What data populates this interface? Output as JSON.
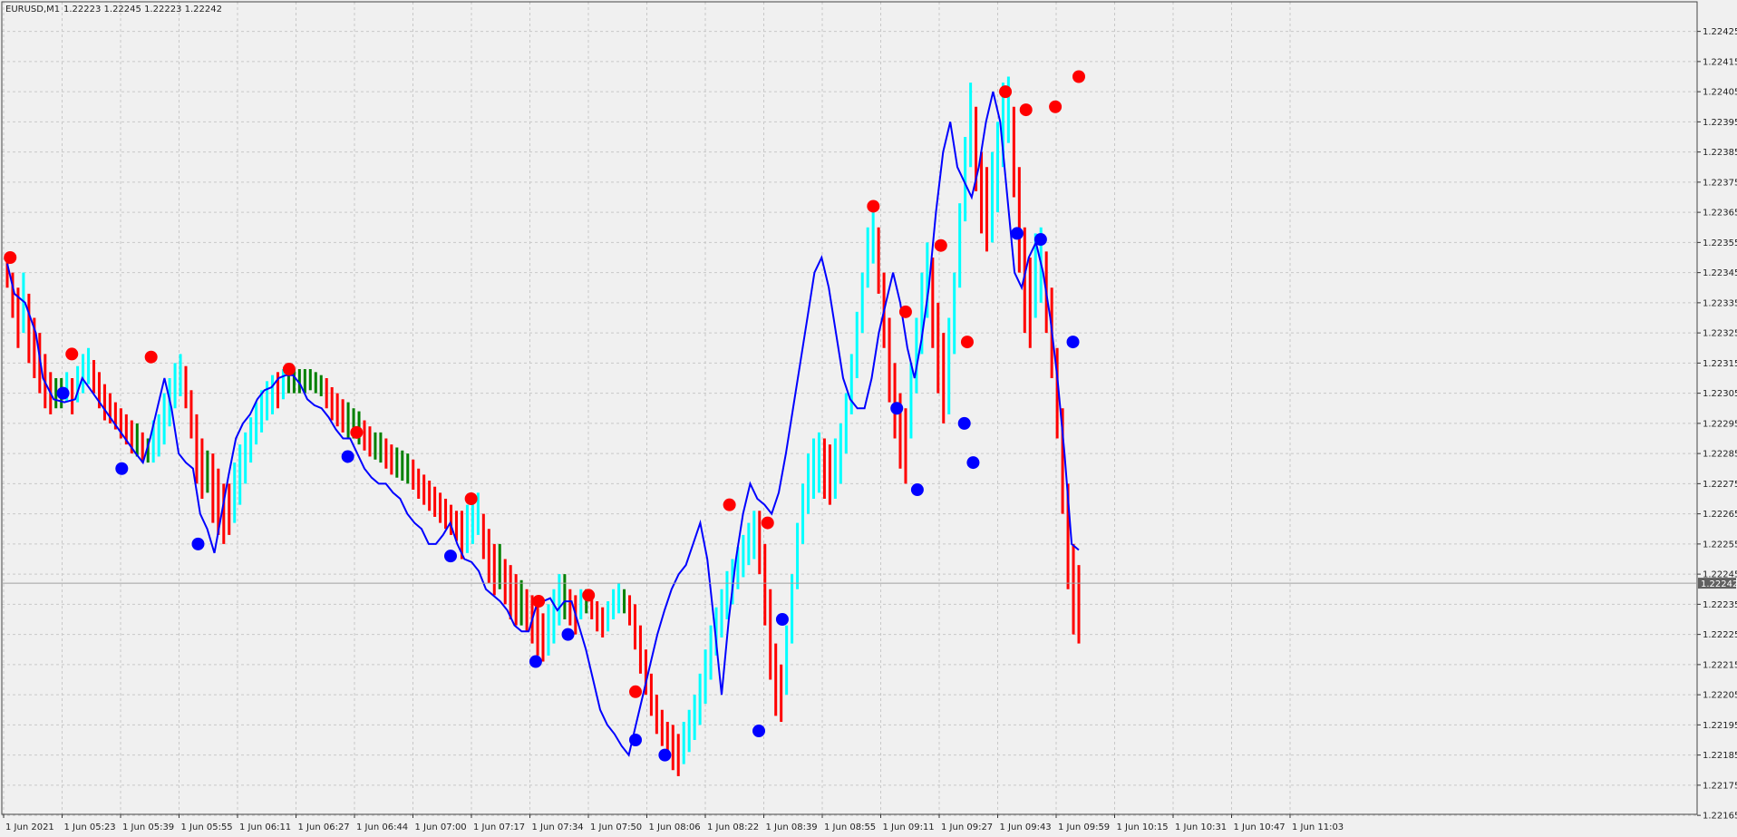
{
  "header": {
    "symbol_timeframe": "EURUSD,M1",
    "ohlc": "1.22223 1.22245 1.22223 1.22242"
  },
  "chart_data": {
    "type": "bar",
    "grid": true,
    "ylim": [
      1.2216,
      1.2243
    ],
    "price_ticks": [
      "1.22425",
      "1.22415",
      "1.22405",
      "1.22395",
      "1.22385",
      "1.22375",
      "1.22365",
      "1.22355",
      "1.22345",
      "1.22335",
      "1.22325",
      "1.22315",
      "1.22305",
      "1.22295",
      "1.22285",
      "1.22275",
      "1.22265",
      "1.22255",
      "1.22245",
      "1.22235",
      "1.22225",
      "1.22215",
      "1.22205",
      "1.22195",
      "1.22185",
      "1.22175",
      "1.22165"
    ],
    "time_labels": [
      "1 Jun 2021",
      "1 Jun 05:23",
      "1 Jun 05:39",
      "1 Jun 05:55",
      "1 Jun 06:11",
      "1 Jun 06:27",
      "1 Jun 06:44",
      "1 Jun 07:00",
      "1 Jun 07:17",
      "1 Jun 07:34",
      "1 Jun 07:50",
      "1 Jun 08:06",
      "1 Jun 08:22",
      "1 Jun 08:39",
      "1 Jun 08:55",
      "1 Jun 09:11",
      "1 Jun 09:27",
      "1 Jun 09:43",
      "1 Jun 09:59",
      "1 Jun 10:15",
      "1 Jun 10:31",
      "1 Jun 10:47",
      "1 Jun 11:03"
    ],
    "current_price": "1.22242",
    "price_line": 1.22242,
    "colors": {
      "background": "#f0f0f0",
      "grid": "#c8c8c8",
      "bar_up": "#00ffff",
      "bar_down": "#ff0000",
      "bar_neutral": "#008000",
      "band_line": "#0000ff",
      "marker_high": "#ff0000",
      "marker_low": "#0000ff",
      "price_label_bg": "#606060"
    },
    "band_line": [
      [
        0,
        1.22348
      ],
      [
        2,
        1.22338
      ],
      [
        5,
        1.22335
      ],
      [
        8,
        1.22325
      ],
      [
        10,
        1.2231
      ],
      [
        13,
        1.22303
      ],
      [
        16,
        1.22302
      ],
      [
        19,
        1.22303
      ],
      [
        21,
        1.2231
      ],
      [
        24,
        1.22305
      ],
      [
        27,
        1.223
      ],
      [
        30,
        1.22295
      ],
      [
        33,
        1.2229
      ],
      [
        36,
        1.22285
      ],
      [
        38,
        1.22282
      ],
      [
        40,
        1.2229
      ],
      [
        42,
        1.223
      ],
      [
        44,
        1.2231
      ],
      [
        46,
        1.223
      ],
      [
        48,
        1.22285
      ],
      [
        50,
        1.22282
      ],
      [
        52,
        1.2228
      ],
      [
        54,
        1.22265
      ],
      [
        56,
        1.2226
      ],
      [
        58,
        1.22252
      ],
      [
        60,
        1.22265
      ],
      [
        62,
        1.22278
      ],
      [
        64,
        1.2229
      ],
      [
        66,
        1.22295
      ],
      [
        68,
        1.22298
      ],
      [
        70,
        1.22303
      ],
      [
        72,
        1.22306
      ],
      [
        74,
        1.22307
      ],
      [
        76,
        1.2231
      ],
      [
        78,
        1.22311
      ],
      [
        80,
        1.22311
      ],
      [
        82,
        1.22308
      ],
      [
        84,
        1.22303
      ],
      [
        86,
        1.22301
      ],
      [
        88,
        1.223
      ],
      [
        90,
        1.22297
      ],
      [
        92,
        1.22293
      ],
      [
        94,
        1.2229
      ],
      [
        96,
        1.2229
      ],
      [
        98,
        1.22285
      ],
      [
        100,
        1.2228
      ],
      [
        102,
        1.22277
      ],
      [
        104,
        1.22275
      ],
      [
        106,
        1.22275
      ],
      [
        108,
        1.22272
      ],
      [
        110,
        1.2227
      ],
      [
        112,
        1.22265
      ],
      [
        114,
        1.22262
      ],
      [
        116,
        1.2226
      ],
      [
        118,
        1.22255
      ],
      [
        120,
        1.22255
      ],
      [
        122,
        1.22258
      ],
      [
        124,
        1.22262
      ],
      [
        126,
        1.22255
      ],
      [
        128,
        1.2225
      ],
      [
        130,
        1.22249
      ],
      [
        132,
        1.22246
      ],
      [
        134,
        1.2224
      ],
      [
        136,
        1.22238
      ],
      [
        138,
        1.22236
      ],
      [
        140,
        1.22233
      ],
      [
        142,
        1.22228
      ],
      [
        144,
        1.22226
      ],
      [
        146,
        1.22226
      ],
      [
        148,
        1.22234
      ],
      [
        150,
        1.22236
      ],
      [
        152,
        1.22237
      ],
      [
        154,
        1.22233
      ],
      [
        156,
        1.22236
      ],
      [
        158,
        1.22236
      ],
      [
        160,
        1.22228
      ],
      [
        162,
        1.2222
      ],
      [
        164,
        1.2221
      ],
      [
        166,
        1.222
      ],
      [
        168,
        1.22195
      ],
      [
        170,
        1.22192
      ],
      [
        172,
        1.22188
      ],
      [
        174,
        1.22185
      ],
      [
        176,
        1.22195
      ],
      [
        178,
        1.22205
      ],
      [
        180,
        1.22215
      ],
      [
        182,
        1.22225
      ],
      [
        184,
        1.22233
      ],
      [
        186,
        1.2224
      ],
      [
        188,
        1.22245
      ],
      [
        190,
        1.22248
      ],
      [
        192,
        1.22255
      ],
      [
        194,
        1.22262
      ],
      [
        196,
        1.2225
      ],
      [
        198,
        1.22228
      ],
      [
        200,
        1.22205
      ],
      [
        202,
        1.2223
      ],
      [
        204,
        1.2225
      ],
      [
        206,
        1.22265
      ],
      [
        208,
        1.22275
      ],
      [
        210,
        1.2227
      ],
      [
        212,
        1.22268
      ],
      [
        214,
        1.22265
      ],
      [
        216,
        1.22272
      ],
      [
        218,
        1.22285
      ],
      [
        220,
        1.223
      ],
      [
        222,
        1.22315
      ],
      [
        224,
        1.2233
      ],
      [
        226,
        1.22345
      ],
      [
        228,
        1.2235
      ],
      [
        230,
        1.2234
      ],
      [
        232,
        1.22325
      ],
      [
        234,
        1.2231
      ],
      [
        236,
        1.22303
      ],
      [
        238,
        1.223
      ],
      [
        240,
        1.223
      ],
      [
        242,
        1.2231
      ],
      [
        244,
        1.22325
      ],
      [
        246,
        1.22335
      ],
      [
        248,
        1.22345
      ],
      [
        250,
        1.22335
      ],
      [
        252,
        1.2232
      ],
      [
        254,
        1.2231
      ],
      [
        256,
        1.22323
      ],
      [
        258,
        1.2234
      ],
      [
        260,
        1.22365
      ],
      [
        262,
        1.22385
      ],
      [
        264,
        1.22395
      ],
      [
        266,
        1.2238
      ],
      [
        268,
        1.22375
      ],
      [
        270,
        1.2237
      ],
      [
        272,
        1.2238
      ],
      [
        274,
        1.22395
      ],
      [
        276,
        1.22405
      ],
      [
        278,
        1.22395
      ],
      [
        280,
        1.2237
      ],
      [
        282,
        1.22345
      ],
      [
        284,
        1.2234
      ],
      [
        286,
        1.2235
      ],
      [
        288,
        1.22355
      ],
      [
        290,
        1.22345
      ],
      [
        292,
        1.2233
      ],
      [
        294,
        1.2231
      ],
      [
        296,
        1.22285
      ],
      [
        298,
        1.22255
      ],
      [
        300,
        1.22253
      ]
    ],
    "bars": [
      [
        1.2234,
        1.2235
      ],
      [
        1.2233,
        1.22345
      ],
      [
        1.2232,
        1.2234
      ],
      [
        1.22325,
        1.22345
      ],
      [
        1.22315,
        1.22338
      ],
      [
        1.2231,
        1.2233
      ],
      [
        1.22305,
        1.22325
      ],
      [
        1.223,
        1.22318
      ],
      [
        1.22298,
        1.22312
      ],
      [
        1.223,
        1.2231
      ],
      [
        1.223,
        1.2231
      ],
      [
        1.22302,
        1.22312
      ],
      [
        1.22298,
        1.2231
      ],
      [
        1.22302,
        1.22314
      ],
      [
        1.22305,
        1.22318
      ],
      [
        1.22308,
        1.2232
      ],
      [
        1.22305,
        1.22316
      ],
      [
        1.223,
        1.22312
      ],
      [
        1.22296,
        1.22308
      ],
      [
        1.22295,
        1.22305
      ],
      [
        1.22293,
        1.22302
      ],
      [
        1.2229,
        1.223
      ],
      [
        1.22288,
        1.22298
      ],
      [
        1.22285,
        1.22296
      ],
      [
        1.22284,
        1.22295
      ],
      [
        1.22282,
        1.22292
      ],
      [
        1.22282,
        1.2229
      ],
      [
        1.22282,
        1.22296
      ],
      [
        1.22284,
        1.22298
      ],
      [
        1.22288,
        1.22305
      ],
      [
        1.22294,
        1.2231
      ],
      [
        1.223,
        1.22315
      ],
      [
        1.22304,
        1.22318
      ],
      [
        1.223,
        1.22314
      ],
      [
        1.2229,
        1.22306
      ],
      [
        1.22275,
        1.22298
      ],
      [
        1.2227,
        1.2229
      ],
      [
        1.22272,
        1.22286
      ],
      [
        1.22262,
        1.22285
      ],
      [
        1.22258,
        1.2228
      ],
      [
        1.22255,
        1.22275
      ],
      [
        1.22258,
        1.22275
      ],
      [
        1.22262,
        1.22282
      ],
      [
        1.22268,
        1.22288
      ],
      [
        1.22275,
        1.22292
      ],
      [
        1.22282,
        1.22297
      ],
      [
        1.22288,
        1.22302
      ],
      [
        1.22292,
        1.22306
      ],
      [
        1.22296,
        1.22309
      ],
      [
        1.22298,
        1.22311
      ],
      [
        1.223,
        1.22312
      ],
      [
        1.22303,
        1.22313
      ],
      [
        1.22305,
        1.22313
      ],
      [
        1.22305,
        1.22313
      ],
      [
        1.22305,
        1.22313
      ],
      [
        1.22305,
        1.22313
      ],
      [
        1.22306,
        1.22313
      ],
      [
        1.22305,
        1.22312
      ],
      [
        1.22304,
        1.22311
      ],
      [
        1.223,
        1.2231
      ],
      [
        1.22296,
        1.22307
      ],
      [
        1.22294,
        1.22305
      ],
      [
        1.22292,
        1.22303
      ],
      [
        1.2229,
        1.22302
      ],
      [
        1.2229,
        1.223
      ],
      [
        1.22288,
        1.22299
      ],
      [
        1.22286,
        1.22296
      ],
      [
        1.22284,
        1.22294
      ],
      [
        1.22283,
        1.22292
      ],
      [
        1.22282,
        1.22292
      ],
      [
        1.2228,
        1.2229
      ],
      [
        1.22278,
        1.22288
      ],
      [
        1.22277,
        1.22287
      ],
      [
        1.22276,
        1.22286
      ],
      [
        1.22275,
        1.22285
      ],
      [
        1.22273,
        1.22283
      ],
      [
        1.2227,
        1.2228
      ],
      [
        1.22268,
        1.22278
      ],
      [
        1.22266,
        1.22276
      ],
      [
        1.22264,
        1.22274
      ],
      [
        1.22262,
        1.22272
      ],
      [
        1.2226,
        1.2227
      ],
      [
        1.22258,
        1.22268
      ],
      [
        1.22256,
        1.22266
      ],
      [
        1.2225,
        1.22266
      ],
      [
        1.22252,
        1.22268
      ],
      [
        1.22255,
        1.2227
      ],
      [
        1.22258,
        1.22272
      ],
      [
        1.2225,
        1.22265
      ],
      [
        1.22242,
        1.2226
      ],
      [
        1.22238,
        1.22255
      ],
      [
        1.2224,
        1.22255
      ],
      [
        1.22235,
        1.2225
      ],
      [
        1.2223,
        1.22248
      ],
      [
        1.22228,
        1.22245
      ],
      [
        1.22228,
        1.22243
      ],
      [
        1.22226,
        1.2224
      ],
      [
        1.22222,
        1.22238
      ],
      [
        1.22218,
        1.22235
      ],
      [
        1.22216,
        1.22232
      ],
      [
        1.22218,
        1.22235
      ],
      [
        1.22222,
        1.2224
      ],
      [
        1.22228,
        1.22245
      ],
      [
        1.2223,
        1.22245
      ],
      [
        1.22228,
        1.2224
      ],
      [
        1.22225,
        1.22238
      ],
      [
        1.2223,
        1.2224
      ],
      [
        1.22232,
        1.2224
      ],
      [
        1.2223,
        1.22238
      ],
      [
        1.22226,
        1.22236
      ],
      [
        1.22224,
        1.22234
      ],
      [
        1.22226,
        1.22236
      ],
      [
        1.2223,
        1.2224
      ],
      [
        1.22232,
        1.22242
      ],
      [
        1.22232,
        1.2224
      ],
      [
        1.22228,
        1.22238
      ],
      [
        1.2222,
        1.22235
      ],
      [
        1.22212,
        1.22228
      ],
      [
        1.22205,
        1.2222
      ],
      [
        1.22198,
        1.22212
      ],
      [
        1.22192,
        1.22205
      ],
      [
        1.22188,
        1.222
      ],
      [
        1.22186,
        1.22196
      ],
      [
        1.2218,
        1.22195
      ],
      [
        1.22178,
        1.22192
      ],
      [
        1.22182,
        1.22196
      ],
      [
        1.22186,
        1.222
      ],
      [
        1.2219,
        1.22205
      ],
      [
        1.22195,
        1.22212
      ],
      [
        1.22202,
        1.2222
      ],
      [
        1.2221,
        1.22228
      ],
      [
        1.22218,
        1.22234
      ],
      [
        1.22224,
        1.2224
      ],
      [
        1.2223,
        1.22246
      ],
      [
        1.22235,
        1.2225
      ],
      [
        1.2224,
        1.22254
      ],
      [
        1.22244,
        1.22258
      ],
      [
        1.22248,
        1.22262
      ],
      [
        1.2225,
        1.22266
      ],
      [
        1.22245,
        1.22266
      ],
      [
        1.22228,
        1.22255
      ],
      [
        1.2221,
        1.2224
      ],
      [
        1.22198,
        1.22222
      ],
      [
        1.22196,
        1.22215
      ],
      [
        1.22205,
        1.22228
      ],
      [
        1.22222,
        1.22245
      ],
      [
        1.2224,
        1.22262
      ],
      [
        1.22255,
        1.22275
      ],
      [
        1.22265,
        1.22285
      ],
      [
        1.2227,
        1.2229
      ],
      [
        1.22272,
        1.22292
      ],
      [
        1.2227,
        1.2229
      ],
      [
        1.22268,
        1.22288
      ],
      [
        1.2227,
        1.2229
      ],
      [
        1.22275,
        1.22295
      ],
      [
        1.22285,
        1.22305
      ],
      [
        1.22298,
        1.22318
      ],
      [
        1.2231,
        1.22332
      ],
      [
        1.22325,
        1.22345
      ],
      [
        1.2234,
        1.2236
      ],
      [
        1.22348,
        1.22368
      ],
      [
        1.22338,
        1.2236
      ],
      [
        1.2232,
        1.22345
      ],
      [
        1.22302,
        1.2233
      ],
      [
        1.2229,
        1.22315
      ],
      [
        1.2228,
        1.22305
      ],
      [
        1.22275,
        1.223
      ],
      [
        1.2229,
        1.22315
      ],
      [
        1.22305,
        1.2233
      ],
      [
        1.22318,
        1.22345
      ],
      [
        1.2233,
        1.22355
      ],
      [
        1.2232,
        1.2235
      ],
      [
        1.22305,
        1.22335
      ],
      [
        1.22295,
        1.22325
      ],
      [
        1.22298,
        1.2233
      ],
      [
        1.22318,
        1.22345
      ],
      [
        1.2234,
        1.22368
      ],
      [
        1.22362,
        1.2239
      ],
      [
        1.2238,
        1.22408
      ],
      [
        1.22372,
        1.224
      ],
      [
        1.22358,
        1.22385
      ],
      [
        1.22352,
        1.2238
      ],
      [
        1.22355,
        1.22385
      ],
      [
        1.22365,
        1.22395
      ],
      [
        1.2238,
        1.22408
      ],
      [
        1.22388,
        1.2241
      ],
      [
        1.2237,
        1.224
      ],
      [
        1.22345,
        1.2238
      ],
      [
        1.22325,
        1.2236
      ],
      [
        1.2232,
        1.2235
      ],
      [
        1.2233,
        1.22358
      ],
      [
        1.22335,
        1.2236
      ],
      [
        1.22325,
        1.22352
      ],
      [
        1.2231,
        1.2234
      ],
      [
        1.2229,
        1.2232
      ],
      [
        1.22265,
        1.223
      ],
      [
        1.2224,
        1.22275
      ],
      [
        1.22225,
        1.22255
      ],
      [
        1.22222,
        1.22248
      ]
    ],
    "markers_high": [
      [
        1,
        1.2235
      ],
      [
        22,
        1.22318
      ],
      [
        49,
        1.22317
      ],
      [
        96,
        1.22313
      ],
      [
        119,
        1.22292
      ],
      [
        158,
        1.2227
      ],
      [
        181,
        1.22236
      ],
      [
        198,
        1.22238
      ],
      [
        214,
        1.22206
      ],
      [
        246,
        1.22268
      ],
      [
        259,
        1.22262
      ],
      [
        295,
        1.22367
      ],
      [
        306,
        1.22332
      ],
      [
        318,
        1.22354
      ],
      [
        327,
        1.22322
      ],
      [
        340,
        1.22405
      ],
      [
        347,
        1.22399
      ],
      [
        357,
        1.224
      ],
      [
        365,
        1.2241
      ]
    ],
    "markers_low": [
      [
        19,
        1.22305
      ],
      [
        39,
        1.2228
      ],
      [
        65,
        1.22255
      ],
      [
        116,
        1.22284
      ],
      [
        151,
        1.22251
      ],
      [
        180,
        1.22216
      ],
      [
        191,
        1.22225
      ],
      [
        214,
        1.2219
      ],
      [
        224,
        1.22185
      ],
      [
        256,
        1.22193
      ],
      [
        264,
        1.2223
      ],
      [
        303,
        1.223
      ],
      [
        310,
        1.22273
      ],
      [
        326,
        1.22295
      ],
      [
        329,
        1.22282
      ],
      [
        344,
        1.22358
      ],
      [
        352,
        1.22356
      ],
      [
        363,
        1.22322
      ]
    ]
  }
}
